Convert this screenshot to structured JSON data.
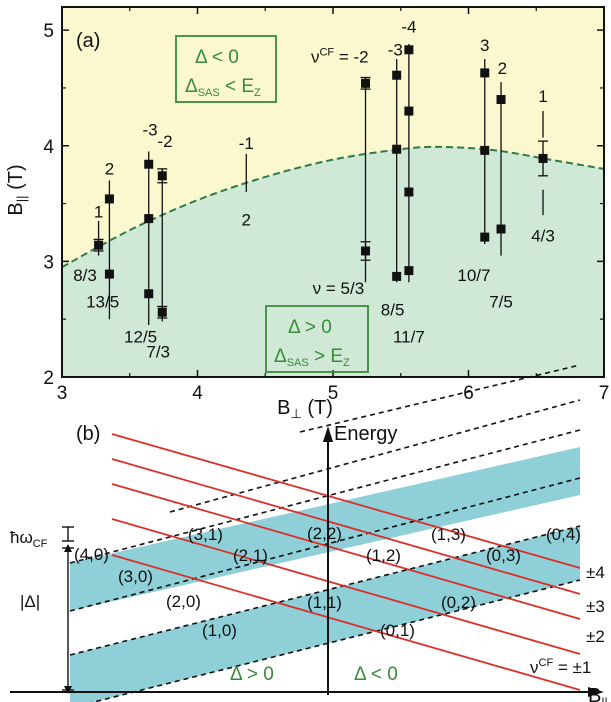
{
  "chart_data": [
    {
      "type": "scatter",
      "panel_label": "(a)",
      "xlabel": "B⊥ (T)",
      "ylabel": "B|| (T)",
      "xlim": [
        3,
        7
      ],
      "ylim": [
        2,
        5.2
      ],
      "x_ticks": [
        "3",
        "4",
        "5",
        "6",
        "7"
      ],
      "y_ticks": [
        "2",
        "3",
        "4",
        "5"
      ],
      "colors": {
        "upper_region": "#fbf7cf",
        "lower_region": "#cfe9d6",
        "boundary": "#2e7a48",
        "box_text": "#3a8a3a"
      },
      "boundary_curve": {
        "x": [
          3.0,
          3.5,
          4.0,
          4.5,
          5.0,
          5.5,
          5.8,
          6.2,
          6.6,
          7.0
        ],
        "y": [
          2.95,
          3.27,
          3.53,
          3.73,
          3.88,
          3.97,
          3.99,
          3.96,
          3.88,
          3.8
        ]
      },
      "upper_box": {
        "line1": "Δ < 0",
        "line2": "Δ_SAS < E_Z"
      },
      "lower_box": {
        "line1": "Δ > 0",
        "line2": "Δ_SAS > E_Z"
      },
      "points": [
        {
          "x": 3.27,
          "y": 3.14,
          "err": 0.05
        },
        {
          "x": 3.35,
          "y": 3.54
        },
        {
          "x": 3.35,
          "y": 2.89
        },
        {
          "x": 3.64,
          "y": 3.84
        },
        {
          "x": 3.64,
          "y": 3.37
        },
        {
          "x": 3.64,
          "y": 2.72
        },
        {
          "x": 3.74,
          "y": 3.74,
          "err": 0.06
        },
        {
          "x": 3.74,
          "y": 2.56,
          "err": 0.05
        },
        {
          "x": 5.24,
          "y": 4.54,
          "err": 0.05
        },
        {
          "x": 5.24,
          "y": 3.09,
          "err": 0.08
        },
        {
          "x": 5.47,
          "y": 4.61
        },
        {
          "x": 5.47,
          "y": 3.97
        },
        {
          "x": 5.47,
          "y": 2.87
        },
        {
          "x": 5.56,
          "y": 4.83
        },
        {
          "x": 5.56,
          "y": 4.3
        },
        {
          "x": 5.56,
          "y": 3.6
        },
        {
          "x": 5.56,
          "y": 2.92
        },
        {
          "x": 6.12,
          "y": 4.63
        },
        {
          "x": 6.12,
          "y": 3.96
        },
        {
          "x": 6.12,
          "y": 3.21
        },
        {
          "x": 6.24,
          "y": 4.4
        },
        {
          "x": 6.24,
          "y": 3.28
        },
        {
          "x": 6.55,
          "y": 3.89,
          "err": 0.15
        }
      ],
      "bars": [
        {
          "x": 3.27,
          "y1": 3.05,
          "y2": 3.35
        },
        {
          "x": 3.35,
          "y1": 2.5,
          "y2": 3.7
        },
        {
          "x": 3.64,
          "y1": 2.45,
          "y2": 3.95
        },
        {
          "x": 3.74,
          "y1": 2.48,
          "y2": 3.8
        },
        {
          "x": 4.36,
          "y1": 3.6,
          "y2": 3.93
        },
        {
          "x": 5.24,
          "y1": 2.82,
          "y2": 4.57
        },
        {
          "x": 5.47,
          "y1": 2.82,
          "y2": 4.75
        },
        {
          "x": 5.56,
          "y1": 2.82,
          "y2": 4.88
        },
        {
          "x": 6.12,
          "y1": 3.15,
          "y2": 4.75
        },
        {
          "x": 6.24,
          "y1": 3.05,
          "y2": 4.55
        },
        {
          "x": 6.55,
          "y1": 3.4,
          "y2": 3.62
        },
        {
          "x": 6.55,
          "y1": 4.07,
          "y2": 4.3
        }
      ],
      "labels": [
        {
          "text": "1",
          "x": 3.27,
          "y": 3.38
        },
        {
          "text": "2",
          "x": 3.35,
          "y": 3.75
        },
        {
          "text": "8/3",
          "x": 3.17,
          "y": 2.83
        },
        {
          "text": "13/5",
          "x": 3.3,
          "y": 2.6
        },
        {
          "text": "-3",
          "x": 3.65,
          "y": 4.09
        },
        {
          "text": "-2",
          "x": 3.76,
          "y": 3.99
        },
        {
          "text": "12/5",
          "x": 3.58,
          "y": 2.3
        },
        {
          "text": "7/3",
          "x": 3.71,
          "y": 2.17
        },
        {
          "text": "-1",
          "x": 4.36,
          "y": 3.97
        },
        {
          "text": "2",
          "x": 4.36,
          "y": 3.31
        },
        {
          "text": "νCF = -2",
          "x": 5.05,
          "y": 4.72
        },
        {
          "text": "ν = 5/3",
          "x": 5.04,
          "y": 2.72
        },
        {
          "text": "-3",
          "x": 5.46,
          "y": 4.78
        },
        {
          "text": "-4",
          "x": 5.56,
          "y": 4.98
        },
        {
          "text": "8/5",
          "x": 5.44,
          "y": 2.53
        },
        {
          "text": "11/7",
          "x": 5.56,
          "y": 2.3
        },
        {
          "text": "3",
          "x": 6.12,
          "y": 4.82
        },
        {
          "text": "2",
          "x": 6.25,
          "y": 4.62
        },
        {
          "text": "10/7",
          "x": 6.04,
          "y": 2.83
        },
        {
          "text": "7/5",
          "x": 6.24,
          "y": 2.6
        },
        {
          "text": "1",
          "x": 6.55,
          "y": 4.38
        },
        {
          "text": "4/3",
          "x": 6.55,
          "y": 3.17
        }
      ]
    },
    {
      "type": "diagram",
      "panel_label": "(b)",
      "axis_label": "Energy",
      "x_axis_label": "B||",
      "hbar_label": "ħω_CF",
      "delta_label": "|Δ|",
      "left_region": "Δ > 0",
      "right_region": "Δ < 0",
      "nu_prefix": "ν",
      "nu_label": "CF",
      "nu_suffix": " = ±1",
      "nu_values": [
        "±4",
        "±3",
        "±2"
      ],
      "colors": {
        "red_line": "#d9302a",
        "band": "#8ecfd8"
      },
      "level_labels": [
        "(4,0)",
        "(3,0)",
        "(3,1)",
        "(2,1)",
        "(2,2)",
        "(1,2)",
        "(1,3)",
        "(0,3)",
        "(0,4)",
        "(2,0)",
        "(1,0)",
        "(1,1)",
        "(0,1)",
        "(0,2)"
      ]
    }
  ]
}
